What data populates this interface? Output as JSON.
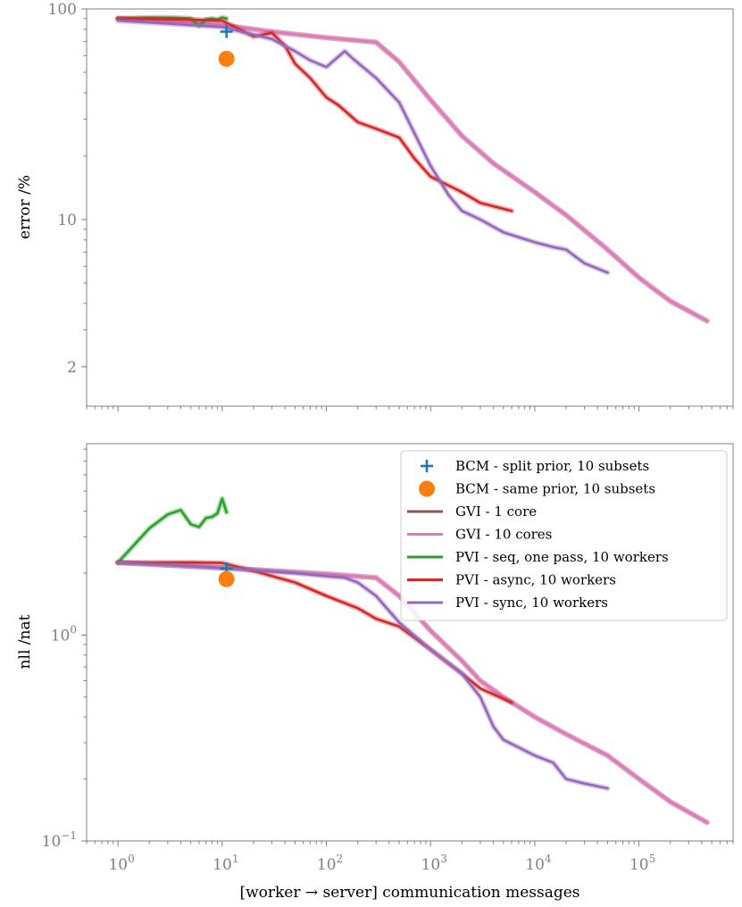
{
  "chart_data": [
    {
      "type": "line",
      "panel": "top",
      "title": "",
      "xlabel": "",
      "ylabel": "error /%",
      "xscale": "log",
      "yscale": "log",
      "xlim": [
        0.5,
        800000
      ],
      "ylim": [
        1.3,
        100
      ],
      "yticks": [
        {
          "value": 100,
          "label": "100"
        },
        {
          "value": 10,
          "label": "10"
        },
        {
          "value": 2,
          "label": "2"
        }
      ],
      "series": [
        {
          "name": "GVI - 1 core",
          "color": "#8c564b",
          "points": [
            [
              1,
              90
            ],
            [
              10,
              84
            ],
            [
              30,
              78
            ],
            [
              100,
              73
            ],
            [
              300,
              69.5
            ],
            [
              500,
              56
            ],
            [
              1000,
              37
            ],
            [
              2000,
              25
            ],
            [
              4000,
              18.5
            ],
            [
              10000,
              13.5
            ],
            [
              20000,
              10.5
            ],
            [
              50000,
              7.2
            ],
            [
              100000,
              5.3
            ],
            [
              200000,
              4.1
            ],
            [
              450000,
              3.3
            ]
          ]
        },
        {
          "name": "GVI - 10 cores",
          "color": "#e377c2",
          "points": [
            [
              1,
              90
            ],
            [
              10,
              84
            ],
            [
              30,
              78
            ],
            [
              100,
              73
            ],
            [
              300,
              69.5
            ],
            [
              500,
              56
            ],
            [
              1000,
              37
            ],
            [
              2000,
              25
            ],
            [
              4000,
              18.5
            ],
            [
              10000,
              13.5
            ],
            [
              20000,
              10.5
            ],
            [
              50000,
              7.2
            ],
            [
              100000,
              5.3
            ],
            [
              200000,
              4.1
            ],
            [
              450000,
              3.3
            ]
          ]
        },
        {
          "name": "PVI - seq, one pass, 10 workers",
          "color": "#2ca02c",
          "points": [
            [
              1,
              90
            ],
            [
              2,
              91
            ],
            [
              3,
              91
            ],
            [
              4,
              90.5
            ],
            [
              5,
              90
            ],
            [
              6,
              83
            ],
            [
              7,
              89
            ],
            [
              8,
              90
            ],
            [
              9,
              89
            ],
            [
              10,
              91
            ],
            [
              11,
              90
            ]
          ]
        },
        {
          "name": "PVI - async, 10 workers",
          "color": "#d62728",
          "points": [
            [
              1,
              90
            ],
            [
              5,
              89
            ],
            [
              10,
              88
            ],
            [
              20,
              74
            ],
            [
              30,
              77
            ],
            [
              40,
              67
            ],
            [
              50,
              55
            ],
            [
              70,
              47
            ],
            [
              100,
              38
            ],
            [
              130,
              35
            ],
            [
              200,
              29
            ],
            [
              300,
              27
            ],
            [
              500,
              24.5
            ],
            [
              700,
              19.5
            ],
            [
              1000,
              16
            ],
            [
              2000,
              13.5
            ],
            [
              3000,
              12
            ],
            [
              6000,
              11
            ]
          ]
        },
        {
          "name": "PVI - sync, 10 workers",
          "color": "#9467bd",
          "points": [
            [
              1,
              88
            ],
            [
              10,
              82
            ],
            [
              30,
              72
            ],
            [
              50,
              63
            ],
            [
              70,
              57
            ],
            [
              100,
              53
            ],
            [
              150,
              63
            ],
            [
              180,
              58
            ],
            [
              300,
              47
            ],
            [
              500,
              36
            ],
            [
              1000,
              18
            ],
            [
              1500,
              13
            ],
            [
              2000,
              11
            ],
            [
              3000,
              10
            ],
            [
              5000,
              8.7
            ],
            [
              10000,
              7.8
            ],
            [
              15000,
              7.4
            ],
            [
              20000,
              7.2
            ],
            [
              30000,
              6.2
            ],
            [
              50000,
              5.6
            ]
          ]
        }
      ],
      "markers": [
        {
          "name": "BCM - split prior, 10 subsets",
          "marker": "plus",
          "color": "#1f77b4",
          "x": 11,
          "y": 78
        },
        {
          "name": "BCM - same prior, 10 subsets",
          "marker": "circle",
          "color": "#ff7f0e",
          "x": 11,
          "y": 58
        }
      ]
    },
    {
      "type": "line",
      "panel": "bottom",
      "title": "",
      "xlabel": "[worker → server] communication messages",
      "ylabel": "nll /nat",
      "xscale": "log",
      "yscale": "log",
      "xlim": [
        0.5,
        800000
      ],
      "ylim": [
        0.1,
        8.5
      ],
      "xticks": [
        {
          "base": "10",
          "exp": "0",
          "value": 1
        },
        {
          "base": "10",
          "exp": "1",
          "value": 10
        },
        {
          "base": "10",
          "exp": "2",
          "value": 100
        },
        {
          "base": "10",
          "exp": "3",
          "value": 1000
        },
        {
          "base": "10",
          "exp": "4",
          "value": 10000
        },
        {
          "base": "10",
          "exp": "5",
          "value": 100000
        }
      ],
      "yticks": [
        {
          "base": "10",
          "exp": "0",
          "value": 1
        },
        {
          "base": "10",
          "exp": "−1",
          "value": 0.1
        }
      ],
      "legend_position": "top-right",
      "series": [
        {
          "name": "GVI - 1 core",
          "color": "#8c564b",
          "points": [
            [
              1,
              2.25
            ],
            [
              10,
              2.12
            ],
            [
              100,
              1.98
            ],
            [
              300,
              1.9
            ],
            [
              500,
              1.55
            ],
            [
              1000,
              1.05
            ],
            [
              2000,
              0.75
            ],
            [
              3000,
              0.6
            ],
            [
              5000,
              0.5
            ],
            [
              10000,
              0.4
            ],
            [
              20000,
              0.33
            ],
            [
              50000,
              0.26
            ],
            [
              100000,
              0.2
            ],
            [
              200000,
              0.155
            ],
            [
              450000,
              0.123
            ]
          ]
        },
        {
          "name": "GVI - 10 cores",
          "color": "#e377c2",
          "points": [
            [
              1,
              2.25
            ],
            [
              10,
              2.12
            ],
            [
              100,
              1.98
            ],
            [
              300,
              1.9
            ],
            [
              500,
              1.55
            ],
            [
              1000,
              1.05
            ],
            [
              2000,
              0.75
            ],
            [
              3000,
              0.6
            ],
            [
              5000,
              0.5
            ],
            [
              10000,
              0.4
            ],
            [
              20000,
              0.33
            ],
            [
              50000,
              0.26
            ],
            [
              100000,
              0.2
            ],
            [
              200000,
              0.155
            ],
            [
              450000,
              0.123
            ]
          ]
        },
        {
          "name": "PVI - seq, one pass, 10 workers",
          "color": "#2ca02c",
          "points": [
            [
              1,
              2.25
            ],
            [
              2,
              3.3
            ],
            [
              3,
              3.85
            ],
            [
              4,
              4.05
            ],
            [
              5,
              3.45
            ],
            [
              6,
              3.35
            ],
            [
              7,
              3.7
            ],
            [
              8,
              3.75
            ],
            [
              9,
              3.9
            ],
            [
              10,
              4.6
            ],
            [
              11,
              3.95
            ]
          ]
        },
        {
          "name": "PVI - async, 10 workers",
          "color": "#d62728",
          "points": [
            [
              1,
              2.25
            ],
            [
              5,
              2.25
            ],
            [
              10,
              2.24
            ],
            [
              20,
              2.05
            ],
            [
              50,
              1.8
            ],
            [
              100,
              1.55
            ],
            [
              200,
              1.35
            ],
            [
              300,
              1.2
            ],
            [
              500,
              1.1
            ],
            [
              1000,
              0.85
            ],
            [
              2000,
              0.65
            ],
            [
              3000,
              0.55
            ],
            [
              6000,
              0.47
            ]
          ]
        },
        {
          "name": "PVI - sync, 10 workers",
          "color": "#9467bd",
          "points": [
            [
              1,
              2.25
            ],
            [
              10,
              2.12
            ],
            [
              50,
              2.0
            ],
            [
              100,
              1.93
            ],
            [
              150,
              1.9
            ],
            [
              200,
              1.8
            ],
            [
              300,
              1.55
            ],
            [
              500,
              1.15
            ],
            [
              1000,
              0.85
            ],
            [
              2000,
              0.65
            ],
            [
              3000,
              0.5
            ],
            [
              4000,
              0.36
            ],
            [
              5000,
              0.31
            ],
            [
              10000,
              0.26
            ],
            [
              15000,
              0.24
            ],
            [
              20000,
              0.2
            ],
            [
              30000,
              0.19
            ],
            [
              50000,
              0.18
            ]
          ]
        }
      ],
      "markers": [
        {
          "name": "BCM - split prior, 10 subsets",
          "marker": "plus",
          "color": "#1f77b4",
          "x": 11,
          "y": 2.1
        },
        {
          "name": "BCM - same prior, 10 subsets",
          "marker": "circle",
          "color": "#ff7f0e",
          "x": 11,
          "y": 1.87
        }
      ],
      "legend": [
        {
          "label": "BCM - split prior, 10 subsets",
          "kind": "plus",
          "color": "#1f77b4"
        },
        {
          "label": "BCM - same prior, 10 subsets",
          "kind": "circle",
          "color": "#ff7f0e"
        },
        {
          "label": "GVI - 1 core",
          "kind": "line",
          "color": "#8c564b"
        },
        {
          "label": "GVI - 10 cores",
          "kind": "line",
          "color": "#e377c2"
        },
        {
          "label": "PVI - seq, one pass, 10 workers",
          "kind": "line",
          "color": "#2ca02c"
        },
        {
          "label": "PVI - async, 10 workers",
          "kind": "line",
          "color": "#d62728"
        },
        {
          "label": "PVI - sync, 10 workers",
          "kind": "line",
          "color": "#9467bd"
        }
      ]
    }
  ]
}
